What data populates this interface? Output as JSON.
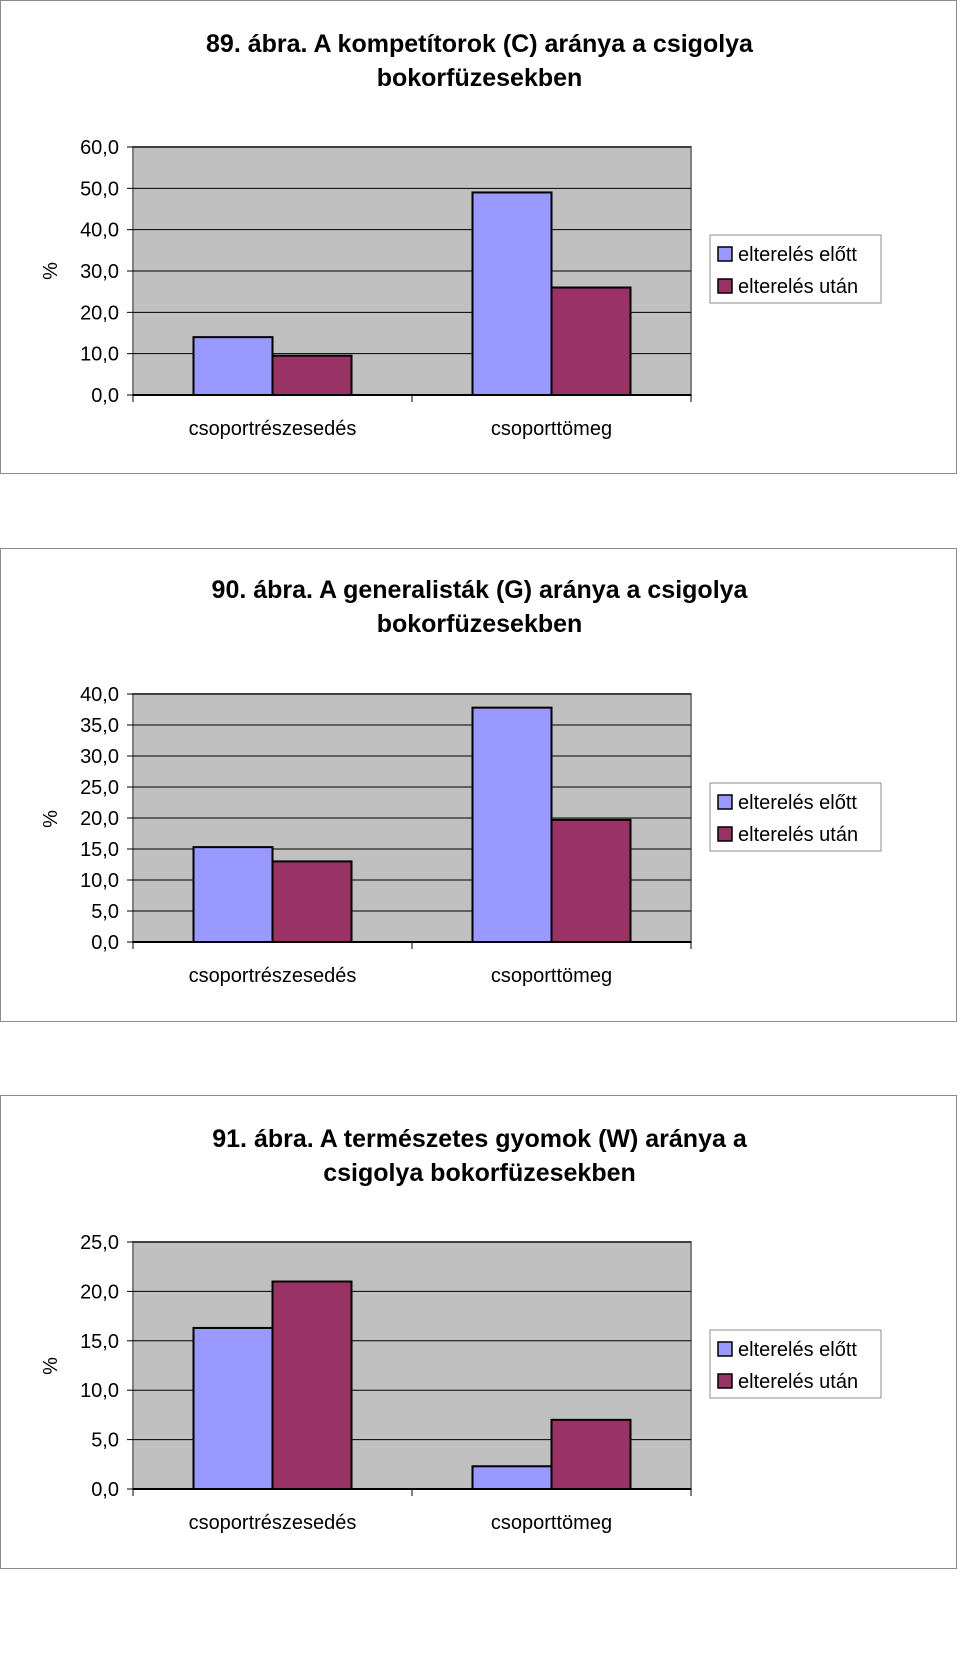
{
  "chart_data": [
    {
      "type": "bar",
      "title": "89. ábra. A kompetítorok (C) aránya a csigolya bokorfüzesekben",
      "title_lines": [
        "89. ábra. A kompetítorok (C) aránya a csigolya",
        "bokorfüzesekben"
      ],
      "ylabel": "%",
      "categories": [
        "csoportrészesedés",
        "csoporttömeg"
      ],
      "series": [
        {
          "name": "elterelés előtt",
          "values": [
            14.0,
            49.0
          ],
          "color": "#9999ff"
        },
        {
          "name": "elterelés után",
          "values": [
            9.5,
            26.0
          ],
          "color": "#993366"
        }
      ],
      "ylim": [
        0,
        60
      ],
      "yticks": [
        0,
        10,
        20,
        30,
        40,
        50,
        60
      ],
      "ytick_labels": [
        "0,0",
        "10,0",
        "20,0",
        "30,0",
        "40,0",
        "50,0",
        "60,0"
      ],
      "grid": true,
      "legend": "right"
    },
    {
      "type": "bar",
      "title": "90. ábra. A generalisták (G) aránya a csigolya bokorfüzesekben",
      "title_lines": [
        "90. ábra. A generalisták (G) aránya a csigolya",
        "bokorfüzesekben"
      ],
      "ylabel": "%",
      "categories": [
        "csoportrészesedés",
        "csoporttömeg"
      ],
      "series": [
        {
          "name": "elterelés előtt",
          "values": [
            15.3,
            37.8
          ],
          "color": "#9999ff"
        },
        {
          "name": "elterelés után",
          "values": [
            13.0,
            19.7
          ],
          "color": "#993366"
        }
      ],
      "ylim": [
        0,
        40
      ],
      "yticks": [
        0,
        5,
        10,
        15,
        20,
        25,
        30,
        35,
        40
      ],
      "ytick_labels": [
        "0,0",
        "5,0",
        "10,0",
        "15,0",
        "20,0",
        "25,0",
        "30,0",
        "35,0",
        "40,0"
      ],
      "grid": true,
      "legend": "right"
    },
    {
      "type": "bar",
      "title": "91. ábra. A természetes gyomok (W) aránya a csigolya bokorfüzesekben",
      "title_lines": [
        "91. ábra. A természetes gyomok (W) aránya a",
        "csigolya bokorfüzesekben"
      ],
      "ylabel": "%",
      "categories": [
        "csoportrészesedés",
        "csoporttömeg"
      ],
      "series": [
        {
          "name": "elterelés előtt",
          "values": [
            16.3,
            2.3
          ],
          "color": "#9999ff"
        },
        {
          "name": "elterelés után",
          "values": [
            21.0,
            7.0
          ],
          "color": "#993366"
        }
      ],
      "ylim": [
        0,
        25
      ],
      "yticks": [
        0,
        5,
        10,
        15,
        20,
        25
      ],
      "ytick_labels": [
        "0,0",
        "5,0",
        "10,0",
        "15,0",
        "20,0",
        "25,0"
      ],
      "grid": true,
      "legend": "right"
    }
  ]
}
